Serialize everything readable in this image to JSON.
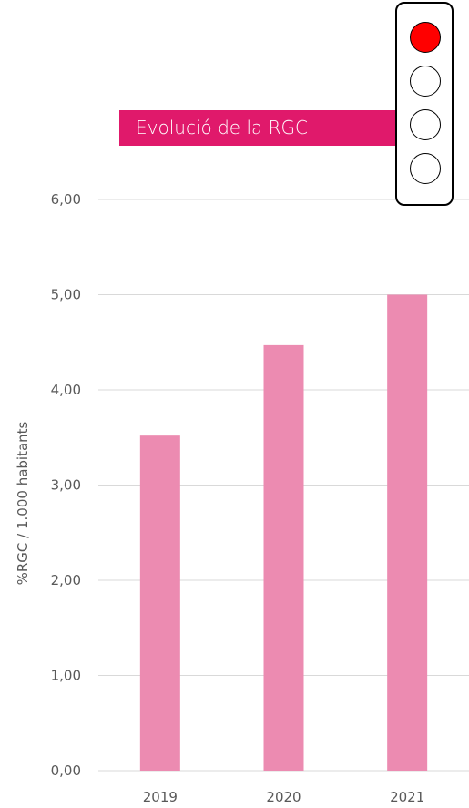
{
  "chart_data": {
    "type": "bar",
    "title": "Evolució de la RGC",
    "categories": [
      "2019",
      "2020",
      "2021"
    ],
    "values": [
      3.52,
      4.47,
      5.0
    ],
    "xlabel": "",
    "ylabel": "%RGC / 1.000 habitants",
    "ylim": [
      0,
      6
    ],
    "yticks": [
      "0,00",
      "1,00",
      "2,00",
      "3,00",
      "4,00",
      "5,00",
      "6,00"
    ],
    "grid": true,
    "bar_color": "#ec8bb1"
  },
  "colors": {
    "title_banner": "#e0196b",
    "bar": "#ec8bb1",
    "gridline": "#d9d9d9",
    "lamp_active": "#ff0000",
    "lamp_inactive": "#ffffff"
  },
  "traffic_light": {
    "icon": "traffic-light-icon",
    "active": "red",
    "lamps": [
      "red",
      "off",
      "off",
      "off"
    ]
  }
}
